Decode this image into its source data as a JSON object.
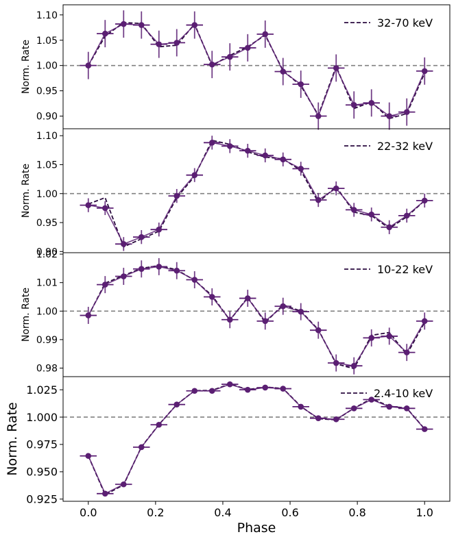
{
  "chart_data": [
    {
      "type": "line",
      "legend": "32-70 keV",
      "ylabel": "Norm. Rate",
      "ylim": [
        0.875,
        1.12
      ],
      "yticks": [
        0.9,
        0.95,
        1.0,
        1.05,
        1.1
      ],
      "ytick_labels": [
        "0.90",
        "0.95",
        "1.00",
        "1.05",
        "1.10"
      ],
      "x": [
        0.0,
        0.05,
        0.105,
        0.158,
        0.21,
        0.263,
        0.316,
        0.368,
        0.421,
        0.474,
        0.526,
        0.579,
        0.632,
        0.684,
        0.737,
        0.79,
        0.842,
        0.895,
        0.947,
        1.0
      ],
      "values": [
        1.0,
        1.063,
        1.082,
        1.08,
        1.042,
        1.045,
        1.08,
        1.002,
        1.017,
        1.035,
        1.062,
        0.988,
        0.963,
        0.9,
        0.995,
        0.922,
        0.926,
        0.9,
        0.908,
        0.989
      ],
      "errors": [
        0.027,
        0.027,
        0.027,
        0.027,
        0.027,
        0.027,
        0.027,
        0.027,
        0.027,
        0.027,
        0.027,
        0.027,
        0.027,
        0.027,
        0.027,
        0.027,
        0.027,
        0.027,
        0.027,
        0.027
      ],
      "model": [
        1.0,
        1.058,
        1.085,
        1.083,
        1.037,
        1.04,
        1.082,
        1.0,
        1.02,
        1.037,
        1.06,
        0.99,
        0.96,
        0.902,
        0.998,
        0.915,
        0.928,
        0.895,
        0.905,
        0.985
      ]
    },
    {
      "type": "line",
      "legend": "22-32 keV",
      "ylabel": "Norm. Rate",
      "ylim": [
        0.898,
        1.112
      ],
      "yticks": [
        0.9,
        0.95,
        1.0,
        1.05,
        1.1
      ],
      "ytick_labels": [
        "0.90",
        "0.95",
        "1.00",
        "1.05",
        "1.10"
      ],
      "x": [
        0.0,
        0.05,
        0.105,
        0.158,
        0.21,
        0.263,
        0.316,
        0.368,
        0.421,
        0.474,
        0.526,
        0.579,
        0.632,
        0.684,
        0.737,
        0.79,
        0.842,
        0.895,
        0.947,
        1.0
      ],
      "values": [
        0.98,
        0.975,
        0.913,
        0.925,
        0.938,
        0.996,
        1.032,
        1.088,
        1.082,
        1.074,
        1.066,
        1.059,
        1.043,
        0.989,
        1.009,
        0.972,
        0.964,
        0.942,
        0.962,
        0.988
      ],
      "errors": [
        0.012,
        0.012,
        0.012,
        0.012,
        0.012,
        0.012,
        0.012,
        0.012,
        0.012,
        0.012,
        0.012,
        0.012,
        0.012,
        0.012,
        0.012,
        0.012,
        0.012,
        0.012,
        0.012,
        0.012
      ],
      "model": [
        0.982,
        0.993,
        0.908,
        0.922,
        0.935,
        0.993,
        1.03,
        1.092,
        1.085,
        1.072,
        1.063,
        1.06,
        1.04,
        0.985,
        1.012,
        0.968,
        0.962,
        0.94,
        0.96,
        0.988
      ]
    },
    {
      "type": "line",
      "legend": "10-22 keV",
      "ylabel": "Norm. Rate",
      "ylim": [
        0.977,
        1.0205
      ],
      "yticks": [
        0.98,
        0.99,
        1.0,
        1.01,
        1.02
      ],
      "ytick_labels": [
        "0.98",
        "0.99",
        "1.00",
        "1.01",
        "1.02"
      ],
      "x": [
        0.0,
        0.05,
        0.105,
        0.158,
        0.21,
        0.263,
        0.316,
        0.368,
        0.421,
        0.474,
        0.526,
        0.579,
        0.632,
        0.684,
        0.737,
        0.79,
        0.842,
        0.895,
        0.947,
        1.0
      ],
      "values": [
        0.9985,
        1.0093,
        1.0122,
        1.0148,
        1.0156,
        1.0142,
        1.011,
        1.005,
        0.997,
        1.0045,
        0.9965,
        1.0017,
        0.9998,
        0.9933,
        0.9818,
        0.9808,
        0.9906,
        0.9912,
        0.9855,
        0.9965
      ],
      "errors": [
        0.003,
        0.003,
        0.003,
        0.003,
        0.003,
        0.003,
        0.003,
        0.003,
        0.003,
        0.003,
        0.003,
        0.003,
        0.003,
        0.003,
        0.003,
        0.003,
        0.003,
        0.003,
        0.003,
        0.003
      ],
      "model": [
        0.9983,
        1.0098,
        1.0125,
        1.015,
        1.016,
        1.0145,
        1.0108,
        1.0055,
        0.9968,
        1.0048,
        0.996,
        1.0022,
        1.0,
        0.9935,
        0.9815,
        0.9798,
        0.9915,
        0.9925,
        0.9848,
        0.996
      ]
    },
    {
      "type": "line",
      "legend": "2.4-10 keV",
      "ylabel": "Norm. Rate",
      "xlabel": "Phase",
      "ylim": [
        0.923,
        1.037
      ],
      "yticks": [
        0.925,
        0.95,
        0.975,
        1.0,
        1.025
      ],
      "ytick_labels": [
        "0.925",
        "0.950",
        "0.975",
        "1.000",
        "1.025"
      ],
      "xlim": [
        -0.075,
        1.075
      ],
      "xticks": [
        0.0,
        0.2,
        0.4,
        0.6,
        0.8,
        1.0
      ],
      "xtick_labels": [
        "0.0",
        "0.2",
        "0.4",
        "0.6",
        "0.8",
        "1.0"
      ],
      "x": [
        0.0,
        0.05,
        0.105,
        0.158,
        0.21,
        0.263,
        0.316,
        0.368,
        0.421,
        0.474,
        0.526,
        0.579,
        0.632,
        0.684,
        0.737,
        0.79,
        0.842,
        0.895,
        0.947,
        1.0
      ],
      "values": [
        0.9645,
        0.93,
        0.9385,
        0.9725,
        0.993,
        1.0115,
        1.024,
        1.024,
        1.03,
        1.025,
        1.027,
        1.026,
        1.0095,
        0.999,
        0.998,
        1.008,
        1.016,
        1.0095,
        1.008,
        0.989
      ],
      "errors": [
        0.001,
        0.001,
        0.001,
        0.001,
        0.001,
        0.001,
        0.001,
        0.001,
        0.001,
        0.001,
        0.001,
        0.001,
        0.001,
        0.001,
        0.001,
        0.001,
        0.001,
        0.001,
        0.001,
        0.001
      ],
      "model": [
        0.9645,
        0.929,
        0.938,
        0.9728,
        0.9932,
        1.0115,
        1.0242,
        1.0245,
        1.0302,
        1.0252,
        1.0275,
        1.0262,
        1.0098,
        0.9985,
        0.9975,
        1.0082,
        1.0168,
        1.01,
        1.0082,
        0.9892
      ]
    }
  ],
  "colors": {
    "data": "#5b1f73",
    "model": "#2a0a3e",
    "reference": "#808080"
  }
}
